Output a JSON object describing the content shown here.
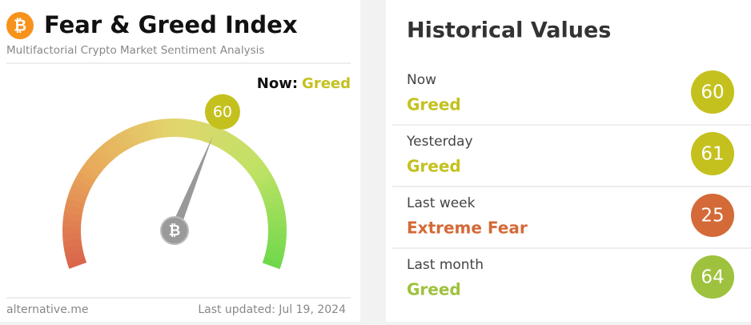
{
  "header": {
    "title": "Fear & Greed Index",
    "subtitle": "Multifactorial Crypto Market Sentiment Analysis"
  },
  "gauge": {
    "now_label": "Now:",
    "now_status": "Greed",
    "value": 60,
    "scale": [
      0,
      100
    ],
    "color": "#c4c11f"
  },
  "footer": {
    "source": "alternative.me",
    "updated": "Last updated: Jul 19, 2024"
  },
  "historical": {
    "title": "Historical Values",
    "rows": [
      {
        "label": "Now",
        "status": "Greed",
        "value": 60,
        "color": "#c4c11f"
      },
      {
        "label": "Yesterday",
        "status": "Greed",
        "value": 61,
        "color": "#c4c11f"
      },
      {
        "label": "Last week",
        "status": "Extreme Fear",
        "value": 25,
        "color": "#d36a38"
      },
      {
        "label": "Last month",
        "status": "Greed",
        "value": 64,
        "color": "#9ec23d"
      }
    ]
  }
}
